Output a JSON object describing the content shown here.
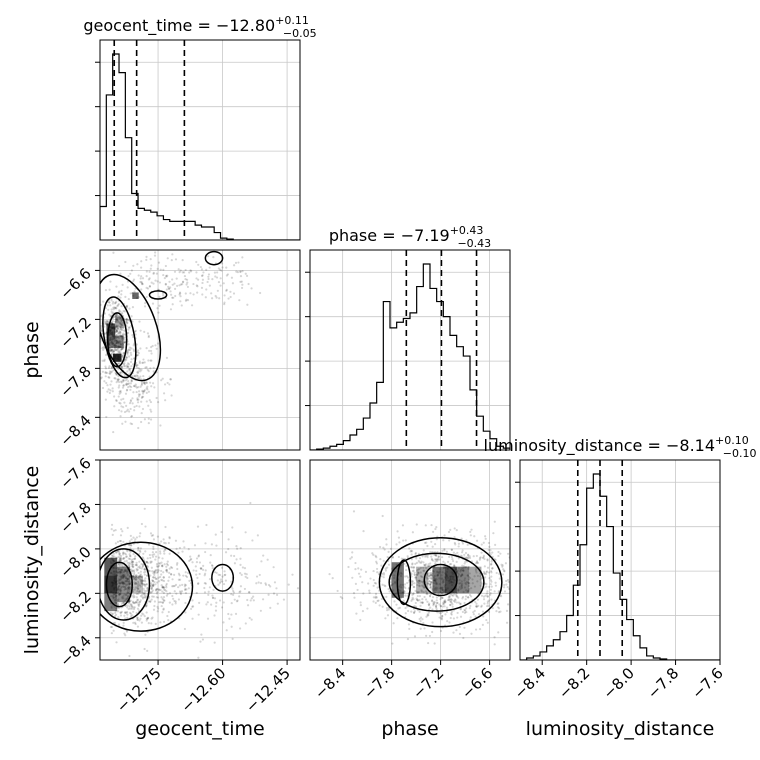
{
  "chart_data": {
    "type": "corner",
    "parameters": [
      {
        "key": "geocent_time",
        "label": "geocent_time",
        "range": [
          -12.885,
          -12.42
        ],
        "ticks": [
          -12.75,
          -12.6,
          -12.45
        ],
        "tick_labels": [
          "−12.75",
          "−12.60",
          "−12.45"
        ]
      },
      {
        "key": "phase",
        "label": "phase",
        "range": [
          -8.8,
          -6.35
        ],
        "ticks": [
          -8.4,
          -7.8,
          -7.2,
          -6.6
        ],
        "tick_labels": [
          "−8.4",
          "−7.8",
          "−7.2",
          "−6.6"
        ]
      },
      {
        "key": "luminosity_distance",
        "label": "luminosity_distance",
        "range": [
          -8.5,
          -7.6
        ],
        "ticks": [
          -8.4,
          -8.2,
          -8.0,
          -7.8,
          -7.6
        ],
        "tick_labels": [
          "−8.4",
          "−8.2",
          "−8.0",
          "−7.8",
          "−7.6"
        ]
      }
    ],
    "titles": [
      {
        "label": "geocent_time",
        "median": "−12.80",
        "plus": "+0.11",
        "minus": "−0.05"
      },
      {
        "label": "phase",
        "median": "−7.19",
        "plus": "+0.43",
        "minus": "−0.43"
      },
      {
        "label": "luminosity_distance",
        "median": "−8.14",
        "plus": "+0.10",
        "minus": "−0.10"
      }
    ],
    "histograms": [
      {
        "param": "geocent_time",
        "bin_width": 0.01475,
        "bin_left_edges": [
          -12.885,
          -12.8703,
          -12.8555,
          -12.8408,
          -12.826,
          -12.8113,
          -12.7965,
          -12.7818,
          -12.767,
          -12.7523,
          -12.7375,
          -12.7228,
          -12.708,
          -12.6933,
          -12.6785,
          -12.6638,
          -12.649,
          -12.6343,
          -12.6195,
          -12.6048,
          -12.59,
          -12.5753,
          -12.5605,
          -12.5458,
          -12.531,
          -12.5163,
          -12.5015,
          -12.4868,
          -12.472,
          -12.4573
        ],
        "counts": [
          0.18,
          0.78,
          1.0,
          0.9,
          0.55,
          0.25,
          0.17,
          0.16,
          0.15,
          0.13,
          0.11,
          0.1,
          0.1,
          0.1,
          0.1,
          0.08,
          0.07,
          0.07,
          0.04,
          0.01,
          0.005,
          0,
          0,
          0,
          0,
          0,
          0,
          0,
          0,
          0
        ],
        "quantiles": [
          -12.8519,
          -12.7998,
          -12.6888
        ]
      },
      {
        "param": "phase",
        "bin_width": 0.08167,
        "bin_left_edges": [
          -8.8,
          -8.7183,
          -8.6367,
          -8.555,
          -8.4733,
          -8.3917,
          -8.31,
          -8.2283,
          -8.1467,
          -8.065,
          -7.9833,
          -7.9017,
          -7.82,
          -7.7383,
          -7.6567,
          -7.575,
          -7.4933,
          -7.4117,
          -7.33,
          -7.2483,
          -7.1667,
          -7.085,
          -7.0033,
          -6.9217,
          -6.84,
          -6.7583,
          -6.6767,
          -6.595,
          -6.5133,
          -6.4317
        ],
        "counts": [
          0,
          0.005,
          0.01,
          0.02,
          0.03,
          0.05,
          0.08,
          0.11,
          0.17,
          0.25,
          0.36,
          0.79,
          0.65,
          0.68,
          0.7,
          0.73,
          0.87,
          0.99,
          0.86,
          0.79,
          0.71,
          0.61,
          0.55,
          0.5,
          0.32,
          0.18,
          0.1,
          0.06,
          0.02,
          0.01
        ],
        "quantiles": [
          -7.62,
          -7.19,
          -6.76
        ]
      },
      {
        "param": "luminosity_distance",
        "bin_width": 0.03,
        "bin_left_edges": [
          -8.5,
          -8.47,
          -8.44,
          -8.41,
          -8.38,
          -8.35,
          -8.32,
          -8.29,
          -8.26,
          -8.23,
          -8.2,
          -8.17,
          -8.14,
          -8.11,
          -8.08,
          -8.05,
          -8.02,
          -7.99,
          -7.96,
          -7.93,
          -7.9,
          -7.87,
          -7.84,
          -7.81,
          -7.78,
          -7.75,
          -7.72,
          -7.69,
          -7.66,
          -7.63
        ],
        "counts": [
          0,
          0.01,
          0.02,
          0.04,
          0.07,
          0.1,
          0.14,
          0.22,
          0.37,
          0.57,
          0.85,
          0.92,
          0.81,
          0.66,
          0.43,
          0.3,
          0.2,
          0.12,
          0.06,
          0.02,
          0.01,
          0.005,
          0,
          0,
          0,
          0,
          0,
          0,
          0,
          0
        ],
        "quantiles": [
          -8.24,
          -8.14,
          -8.04
        ]
      }
    ],
    "density_modes": [
      {
        "x": "geocent_time",
        "y": "phase",
        "centers": [
          [
            -12.855,
            -7.35
          ],
          [
            -12.842,
            -7.72
          ],
          [
            -12.79,
            -6.92
          ]
        ],
        "correlation": 0.55
      },
      {
        "x": "geocent_time",
        "y": "luminosity_distance",
        "centers": [
          [
            -12.84,
            -8.16
          ],
          [
            -12.8,
            -8.18
          ]
        ],
        "correlation": 0.0
      },
      {
        "x": "phase",
        "y": "luminosity_distance",
        "centers": [
          [
            -7.65,
            -8.14
          ],
          [
            -7.2,
            -8.14
          ],
          [
            -6.9,
            -8.15
          ]
        ],
        "correlation": 0.0
      }
    ],
    "grid": true,
    "contour_levels": [
      0.5,
      1.0,
      1.5
    ]
  }
}
